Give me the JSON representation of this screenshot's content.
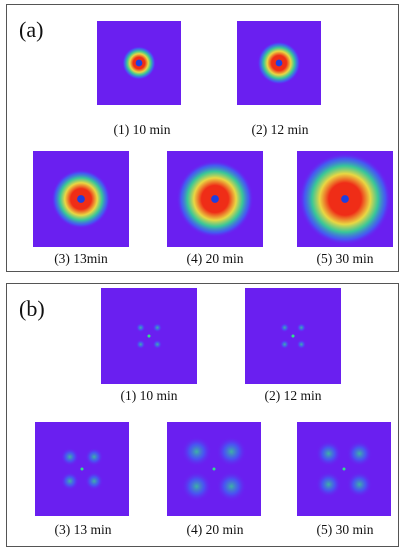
{
  "figure": {
    "colors": {
      "background": "#6a1ff0",
      "low": "#2f7cf4",
      "mid": "#2fe38a",
      "high": "#f0e13a",
      "peak": "#ef2d17",
      "beam_stop": "#1f3fe0"
    },
    "panels": [
      {
        "label": "(a)",
        "kind": "isotropic-ring",
        "images": [
          {
            "caption": "(1) 10 min",
            "intensity": 0.22
          },
          {
            "caption": "(2) 12 min",
            "intensity": 0.38
          },
          {
            "caption": "(3) 13min",
            "intensity": 0.52
          },
          {
            "caption": "(4) 20 min",
            "intensity": 0.78
          },
          {
            "caption": "(5) 30 min",
            "intensity": 1.0
          }
        ]
      },
      {
        "label": "(b)",
        "kind": "four-lobe",
        "images": [
          {
            "caption": "(1) 10 min",
            "intensity": 0.05
          },
          {
            "caption": "(2) 12 min",
            "intensity": 0.05
          },
          {
            "caption": "(3) 13 min",
            "intensity": 0.35
          },
          {
            "caption": "(4) 20 min",
            "intensity": 0.75
          },
          {
            "caption": "(5) 30 min",
            "intensity": 0.6
          }
        ]
      }
    ]
  }
}
